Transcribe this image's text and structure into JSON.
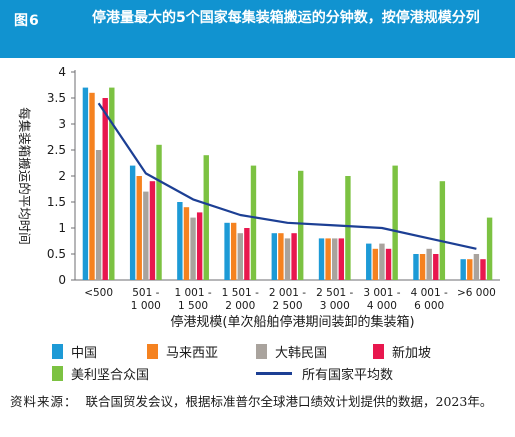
{
  "header": {
    "figure_label": "图6",
    "title": "停港量最大的5个国家每集装箱搬运的分钟数，按停港规模分列"
  },
  "chart_data": {
    "type": "bar",
    "title": "停港量最大的5个国家每集装箱搬运的分钟数，按停港规模分列",
    "xlabel": "停港规模(单次船舶停港期间装卸的集装箱)",
    "ylabel": "每集装箱搬运的平均时间",
    "ylim": [
      0,
      4
    ],
    "yticks": [
      "0",
      "0.5",
      "1",
      "1.5",
      "2",
      "2.5",
      "3",
      "3.5",
      "4"
    ],
    "grid": false,
    "legend_position": "bottom",
    "categories": [
      [
        "<500"
      ],
      [
        "501 -",
        "1 000"
      ],
      [
        "1 001 -",
        "1 500"
      ],
      [
        "1 501 -",
        "2 000"
      ],
      [
        "2 001 -",
        "2 500"
      ],
      [
        "2 501 -",
        "3 000"
      ],
      [
        "3 001 -",
        "4 000"
      ],
      [
        "4 001 -",
        "6 000"
      ],
      [
        ">6 000"
      ]
    ],
    "series": [
      {
        "name": "中国",
        "color": "#1d9ad6",
        "values": [
          3.7,
          2.2,
          1.5,
          1.1,
          0.9,
          0.8,
          0.7,
          0.5,
          0.4
        ]
      },
      {
        "name": "马来西亚",
        "color": "#f58220",
        "values": [
          3.6,
          2.0,
          1.4,
          1.1,
          0.9,
          0.8,
          0.6,
          0.5,
          0.4
        ]
      },
      {
        "name": "大韩民国",
        "color": "#a9a39d",
        "values": [
          2.5,
          1.7,
          1.2,
          0.9,
          0.8,
          0.8,
          0.7,
          0.6,
          0.5
        ]
      },
      {
        "name": "新加坡",
        "color": "#e8174e",
        "values": [
          3.5,
          1.9,
          1.3,
          1.0,
          0.9,
          0.8,
          0.6,
          0.5,
          0.4
        ]
      },
      {
        "name": "美利坚合众国",
        "color": "#7cc242",
        "values": [
          3.7,
          2.6,
          2.4,
          2.2,
          2.1,
          2.0,
          2.2,
          1.9,
          1.2
        ]
      }
    ],
    "average_line": {
      "name": "所有国家平均数",
      "color": "#1c3f94",
      "values": [
        3.4,
        2.05,
        1.55,
        1.25,
        1.1,
        1.05,
        1.0,
        0.8,
        0.6
      ]
    }
  },
  "source": {
    "label": "资料来源：",
    "text": "联合国贸发会议，根据标准普尔全球港口绩效计划提供的数据，2023年。"
  }
}
